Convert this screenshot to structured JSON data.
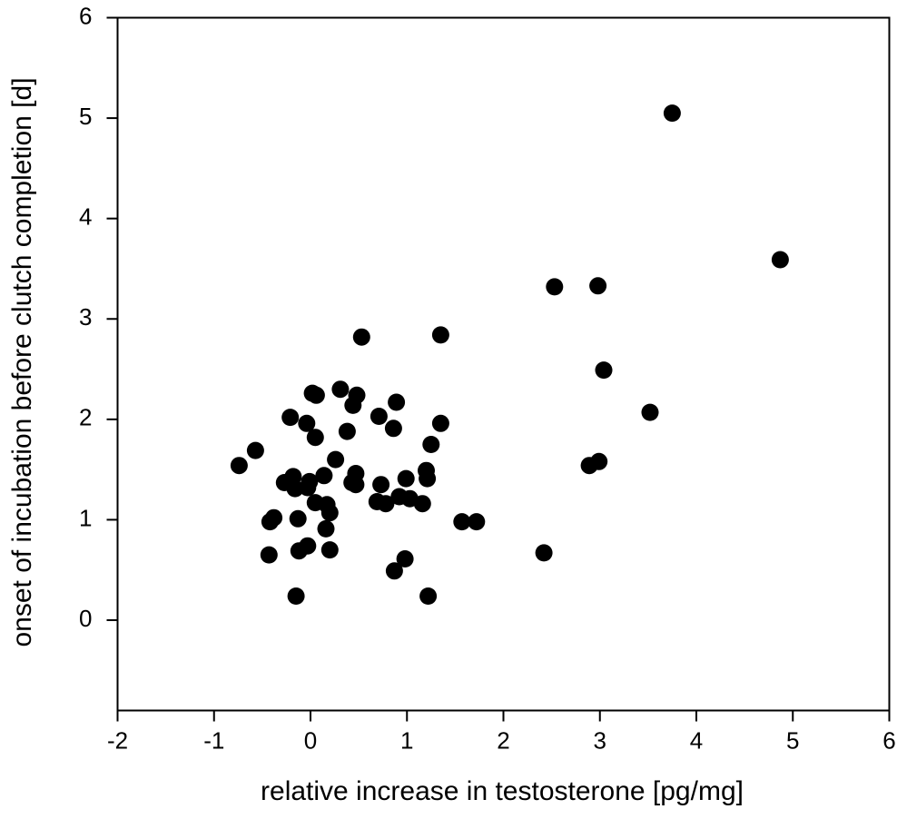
{
  "colors": {
    "marker": "#000000",
    "axis": "#000000",
    "background": "#ffffff"
  },
  "chart_data": {
    "type": "scatter",
    "title": "",
    "xlabel": "relative increase in testosterone [pg/mg]",
    "ylabel": "onset of incubation before clutch completion [d]",
    "xlim": [
      -2,
      6
    ],
    "ylim": [
      -0.9,
      6
    ],
    "x_ticks": [
      -2,
      -1,
      0,
      1,
      2,
      3,
      4,
      5,
      6
    ],
    "y_ticks": [
      0,
      1,
      2,
      3,
      4,
      5,
      6
    ],
    "x_tick_labels": [
      "-2",
      "-1",
      "0",
      "1",
      "2",
      "3",
      "4",
      "5",
      "6"
    ],
    "y_tick_labels": [
      "0",
      "1",
      "2",
      "3",
      "4",
      "5",
      "6"
    ],
    "grid": false,
    "legend": "none",
    "series": [
      {
        "marker": "filled-circle",
        "points": [
          {
            "x": 3.75,
            "y": 5.05
          },
          {
            "x": 4.87,
            "y": 3.59
          },
          {
            "x": 2.53,
            "y": 3.32
          },
          {
            "x": 2.98,
            "y": 3.33
          },
          {
            "x": 3.04,
            "y": 2.49
          },
          {
            "x": 3.52,
            "y": 2.07
          },
          {
            "x": 2.89,
            "y": 1.54
          },
          {
            "x": 2.99,
            "y": 1.58
          },
          {
            "x": 2.42,
            "y": 0.67
          },
          {
            "x": 1.35,
            "y": 2.84
          },
          {
            "x": 0.53,
            "y": 2.82
          },
          {
            "x": 0.31,
            "y": 2.3
          },
          {
            "x": 0.02,
            "y": 2.26
          },
          {
            "x": 0.06,
            "y": 2.24
          },
          {
            "x": 0.48,
            "y": 2.24
          },
          {
            "x": 0.44,
            "y": 2.14
          },
          {
            "x": 0.89,
            "y": 2.17
          },
          {
            "x": 0.71,
            "y": 2.03
          },
          {
            "x": -0.21,
            "y": 2.02
          },
          {
            "x": -0.04,
            "y": 1.96
          },
          {
            "x": 1.35,
            "y": 1.96
          },
          {
            "x": 0.86,
            "y": 1.91
          },
          {
            "x": 0.38,
            "y": 1.88
          },
          {
            "x": 0.05,
            "y": 1.82
          },
          {
            "x": 1.25,
            "y": 1.75
          },
          {
            "x": -0.57,
            "y": 1.69
          },
          {
            "x": 0.26,
            "y": 1.6
          },
          {
            "x": -0.74,
            "y": 1.54
          },
          {
            "x": 1.2,
            "y": 1.49
          },
          {
            "x": 0.47,
            "y": 1.46
          },
          {
            "x": 0.14,
            "y": 1.44
          },
          {
            "x": -0.18,
            "y": 1.43
          },
          {
            "x": 0.99,
            "y": 1.41
          },
          {
            "x": 1.21,
            "y": 1.41
          },
          {
            "x": -0.27,
            "y": 1.37
          },
          {
            "x": -0.01,
            "y": 1.38
          },
          {
            "x": 0.43,
            "y": 1.37
          },
          {
            "x": 0.73,
            "y": 1.35
          },
          {
            "x": 0.47,
            "y": 1.35
          },
          {
            "x": -0.03,
            "y": 1.32
          },
          {
            "x": -0.16,
            "y": 1.31
          },
          {
            "x": 0.92,
            "y": 1.23
          },
          {
            "x": 1.03,
            "y": 1.21
          },
          {
            "x": 0.69,
            "y": 1.18
          },
          {
            "x": 0.78,
            "y": 1.16
          },
          {
            "x": 1.16,
            "y": 1.16
          },
          {
            "x": 0.05,
            "y": 1.17
          },
          {
            "x": 0.17,
            "y": 1.15
          },
          {
            "x": 0.2,
            "y": 1.07
          },
          {
            "x": -0.13,
            "y": 1.01
          },
          {
            "x": -0.38,
            "y": 1.02
          },
          {
            "x": -0.42,
            "y": 0.98
          },
          {
            "x": 1.57,
            "y": 0.98
          },
          {
            "x": 1.72,
            "y": 0.98
          },
          {
            "x": 0.16,
            "y": 0.91
          },
          {
            "x": -0.03,
            "y": 0.74
          },
          {
            "x": -0.12,
            "y": 0.69
          },
          {
            "x": 0.2,
            "y": 0.7
          },
          {
            "x": -0.43,
            "y": 0.65
          },
          {
            "x": 0.98,
            "y": 0.61
          },
          {
            "x": 0.87,
            "y": 0.49
          },
          {
            "x": -0.15,
            "y": 0.24
          },
          {
            "x": 1.22,
            "y": 0.24
          }
        ]
      }
    ]
  }
}
